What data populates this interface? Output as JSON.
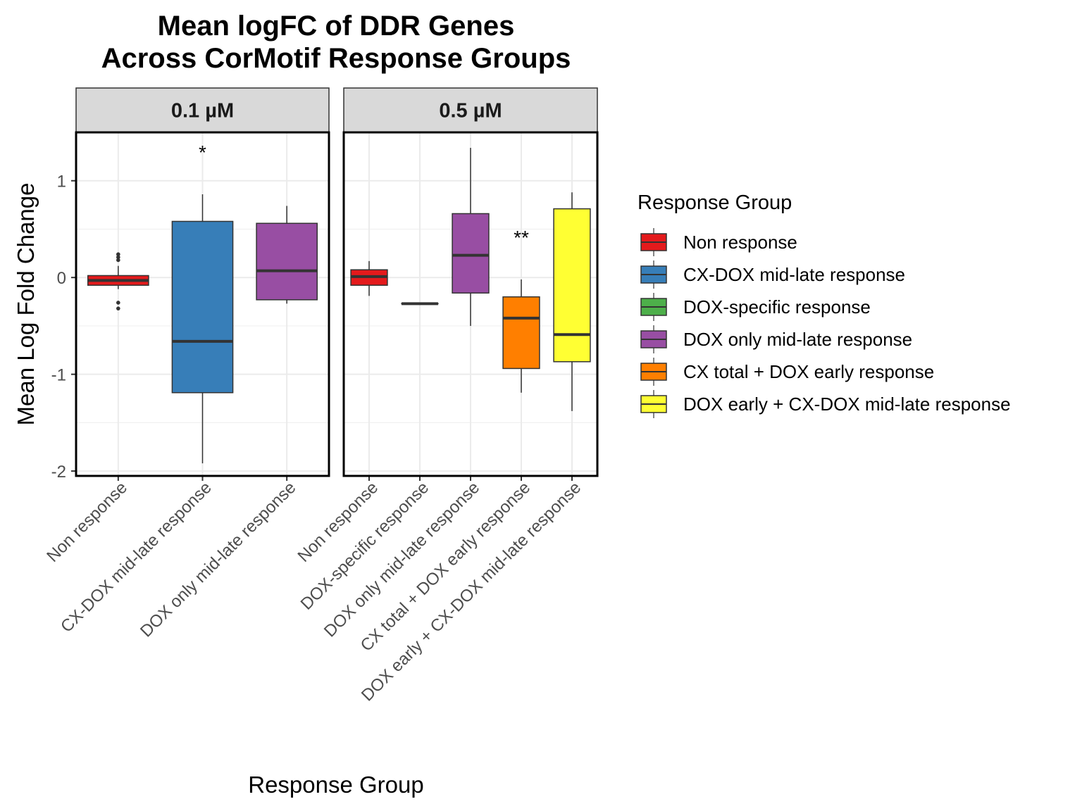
{
  "chart_data": {
    "type": "boxplot",
    "title": "Mean logFC of DDR Genes\nAcross CorMotif Response Groups",
    "xlabel": "Response Group",
    "ylabel": "Mean Log Fold Change",
    "ylim": [
      -2.05,
      1.5
    ],
    "yticks": [
      -2,
      -1,
      0,
      1
    ],
    "grid": true,
    "legend": {
      "title": "Response Group",
      "position": "right",
      "entries": [
        {
          "label": "Non response",
          "color": "#E41A1C"
        },
        {
          "label": "CX-DOX mid-late response",
          "color": "#377EB8"
        },
        {
          "label": "DOX-specific response",
          "color": "#4DAF4A"
        },
        {
          "label": "DOX only mid-late response",
          "color": "#984EA3"
        },
        {
          "label": "CX total + DOX early response",
          "color": "#FF7F00"
        },
        {
          "label": "DOX early + CX-DOX mid-late response",
          "color": "#FFFF33"
        }
      ]
    },
    "panels": [
      {
        "label": "0.1 µM",
        "groups": [
          {
            "category": "Non response",
            "color": "#E41A1C",
            "min": -0.12,
            "q1": -0.08,
            "median": -0.03,
            "q3": 0.02,
            "max": 0.12,
            "outliers": [
              0.18,
              0.21,
              0.24,
              -0.26,
              -0.32
            ]
          },
          {
            "category": "CX-DOX mid-late response",
            "color": "#377EB8",
            "min": -1.92,
            "q1": -1.19,
            "median": -0.66,
            "q3": 0.58,
            "max": 0.86,
            "outliers": [],
            "significance": "*"
          },
          {
            "category": "DOX only mid-late response",
            "color": "#984EA3",
            "min": -0.27,
            "q1": -0.23,
            "median": 0.07,
            "q3": 0.56,
            "max": 0.74,
            "outliers": []
          }
        ]
      },
      {
        "label": "0.5 µM",
        "groups": [
          {
            "category": "Non response",
            "color": "#E41A1C",
            "min": -0.19,
            "q1": -0.08,
            "median": 0.01,
            "q3": 0.08,
            "max": 0.17,
            "outliers": []
          },
          {
            "category": "DOX-specific response",
            "color": "#4DAF4A",
            "min": -0.27,
            "q1": -0.27,
            "median": -0.27,
            "q3": -0.27,
            "max": -0.27,
            "outliers": []
          },
          {
            "category": "DOX only mid-late response",
            "color": "#984EA3",
            "min": -0.5,
            "q1": -0.16,
            "median": 0.23,
            "q3": 0.66,
            "max": 1.34,
            "outliers": []
          },
          {
            "category": "CX total + DOX early response",
            "color": "#FF7F00",
            "min": -1.19,
            "q1": -0.94,
            "median": -0.42,
            "q3": -0.2,
            "max": -0.02,
            "outliers": [],
            "significance": "**"
          },
          {
            "category": "DOX early + CX-DOX mid-late response",
            "color": "#FFFF33",
            "min": -1.38,
            "q1": -0.87,
            "median": -0.59,
            "q3": 0.71,
            "max": 0.88,
            "outliers": []
          }
        ]
      }
    ]
  }
}
